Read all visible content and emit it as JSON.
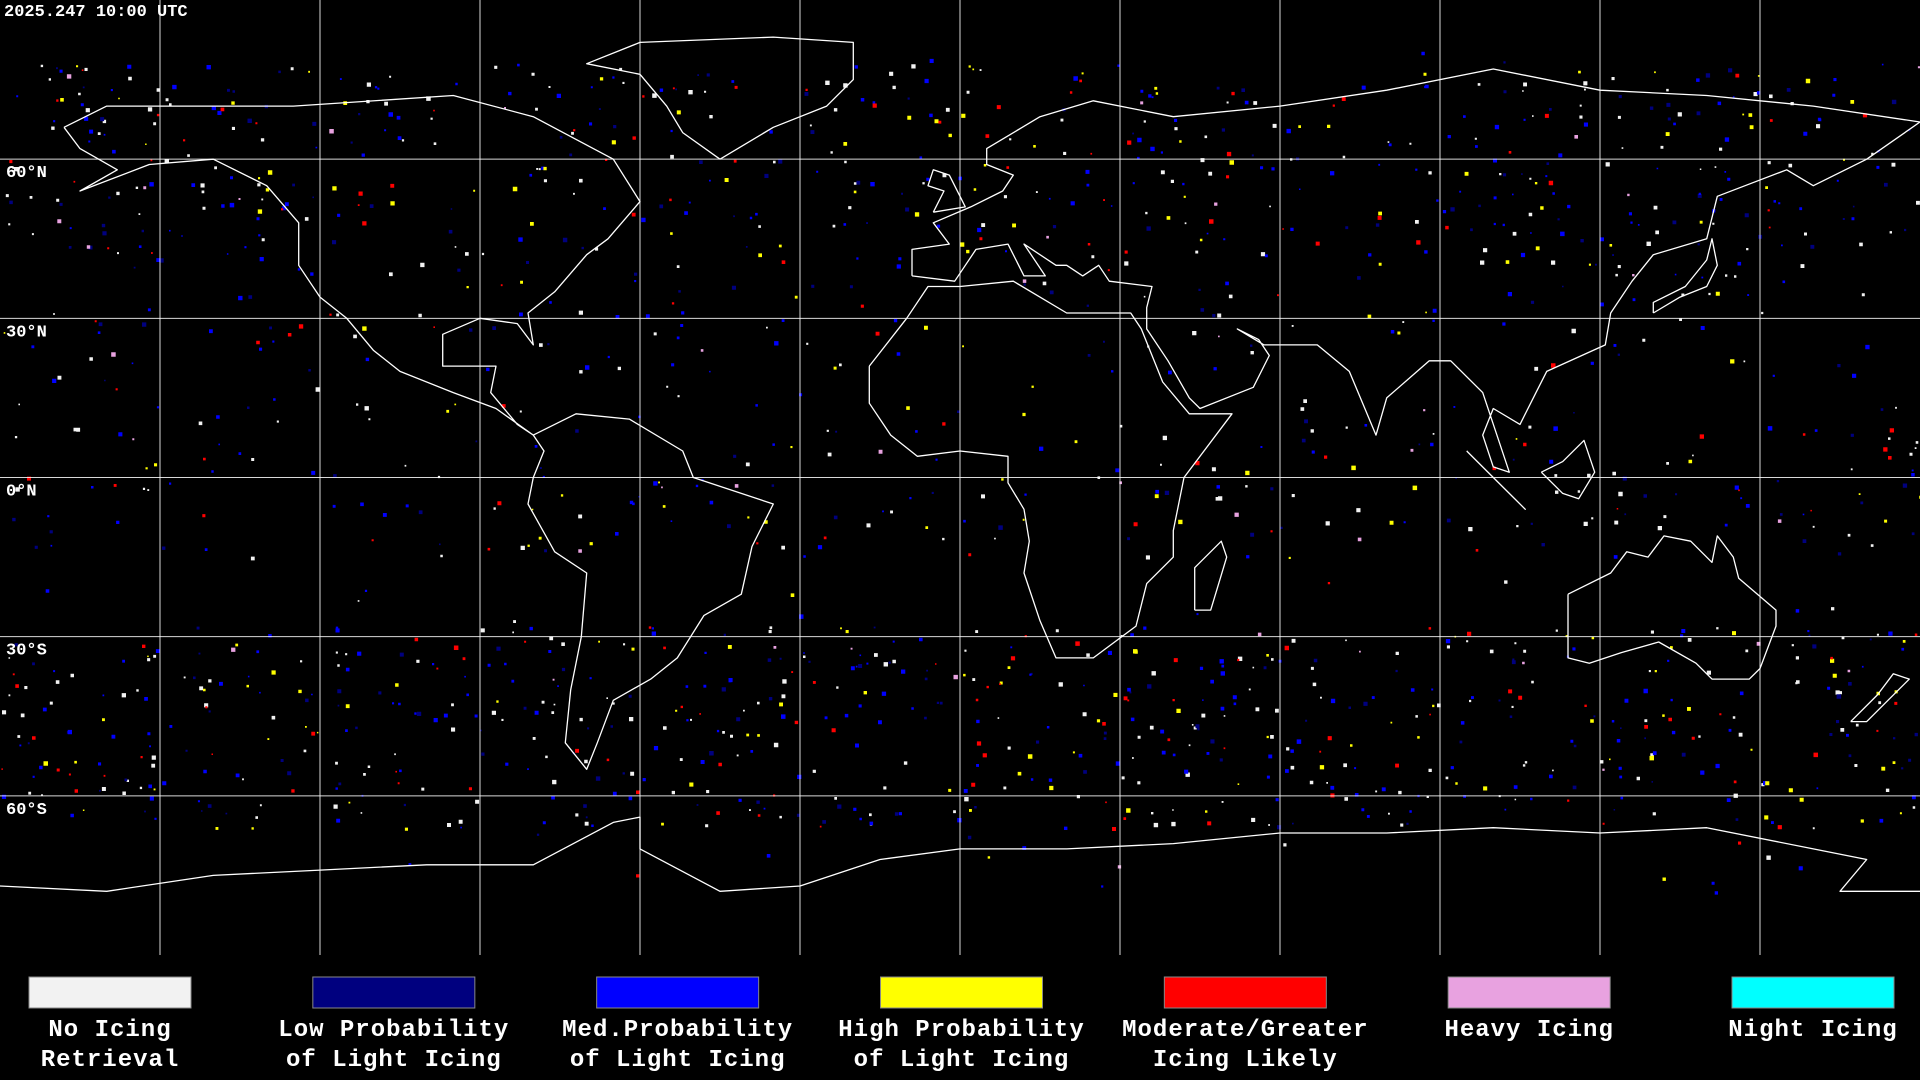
{
  "header": {
    "timestamp": "2025.247 10:00 UTC"
  },
  "map": {
    "lat_labels": [
      "60°N",
      "30°N",
      "0°N",
      "30°S",
      "60°S"
    ]
  },
  "legend": {
    "items": [
      {
        "label": [
          "No Icing",
          "Retrieval"
        ],
        "color": "#f2f2f2"
      },
      {
        "label": [
          "Low Probability",
          "of Light Icing"
        ],
        "color": "#00007f"
      },
      {
        "label": [
          "Med.Probability",
          "of Light Icing"
        ],
        "color": "#0000ff"
      },
      {
        "label": [
          "High Probability",
          "of Light Icing"
        ],
        "color": "#ffff00"
      },
      {
        "label": [
          "Moderate/Greater",
          "Icing Likely"
        ],
        "color": "#ff0000"
      },
      {
        "label": [
          "Heavy Icing"
        ],
        "color": "#e8a2e0"
      },
      {
        "label": [
          "Night Icing"
        ],
        "color": "#00ffff"
      }
    ]
  }
}
